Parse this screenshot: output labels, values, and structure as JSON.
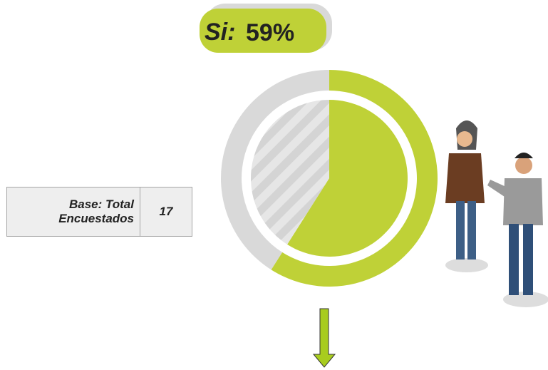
{
  "chart_data": {
    "type": "donut",
    "categories": [
      "Si:",
      null
    ],
    "values": [
      59,
      41
    ],
    "value_labels": [
      "59%",
      null
    ],
    "colors": [
      "#bfd137",
      "#d9d9d9"
    ]
  },
  "base_table": {
    "label": "Base: Total Encuestados",
    "value": 17
  }
}
